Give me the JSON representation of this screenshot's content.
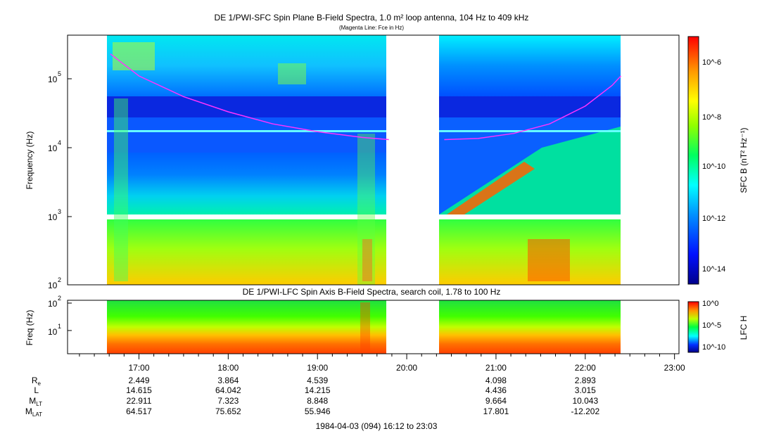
{
  "chart_data": [
    {
      "type": "heatmap",
      "title": "DE 1/PWI-SFC  Spin Plane B-Field Spectra, 1.0 m² loop antenna, 104 Hz to 409 kHz",
      "subtitle": "(Magenta Line: Fce in Hz)",
      "ylabel": "Frequency (Hz)",
      "yscale": "log",
      "ylim": [
        100,
        409000
      ],
      "yticks": [
        "10^2",
        "10^3",
        "10^4",
        "10^5"
      ],
      "colorbar": {
        "label": "SFC B (nT² Hz⁻¹)",
        "scale": "log",
        "ticks": [
          "10^-6",
          "10^-8",
          "10^-10",
          "10^-12",
          "10^-14"
        ]
      },
      "data_gaps_hours": [
        [
          16.2,
          16.667
        ],
        [
          19.8,
          20.4
        ],
        [
          22.4,
          23.2
        ]
      ],
      "magenta_line_fce": {
        "segment_1": {
          "t_hours": [
            16.68,
            17.0,
            17.5,
            18.0,
            18.5,
            19.0,
            19.5,
            19.8
          ],
          "hz": [
            230000,
            110000,
            55000,
            33000,
            22000,
            17000,
            14000,
            13000
          ]
        },
        "segment_2": {
          "t_hours": [
            20.42,
            20.8,
            21.2,
            21.6,
            22.0,
            22.3,
            22.4
          ],
          "hz": [
            13000,
            13500,
            16000,
            22000,
            40000,
            80000,
            110000
          ]
        }
      },
      "tick_labels_y": [
        "10",
        "2",
        "10",
        "3",
        "10",
        "4",
        "10",
        "5"
      ]
    },
    {
      "type": "heatmap",
      "title": "DE 1/PWI-LFC  Spin Axis B-Field Spectra, search coil, 1.78 to 100 Hz",
      "ylabel": "Freq (Hz)",
      "yscale": "log",
      "ylim": [
        1.78,
        100
      ],
      "yticks": [
        "10^1",
        "10^2"
      ],
      "colorbar": {
        "label": "LFC H",
        "scale": "log",
        "ticks": [
          "10^0",
          "10^-5",
          "10^-10"
        ]
      },
      "data_gaps_hours": [
        [
          16.2,
          16.667
        ],
        [
          19.8,
          20.4
        ],
        [
          22.4,
          23.2
        ]
      ]
    }
  ],
  "x_axis": {
    "range_hours": [
      16.2,
      23.05
    ],
    "tick_labels": [
      "17:00",
      "18:00",
      "19:00",
      "20:00",
      "21:00",
      "22:00",
      "23:00"
    ],
    "tick_hours": [
      17,
      18,
      19,
      20,
      21,
      22,
      23
    ]
  },
  "ephemeris": {
    "rows": [
      {
        "label": "R",
        "sub": "e",
        "values": [
          "2.449",
          "3.864",
          "4.539",
          "",
          "4.098",
          "2.893",
          ""
        ]
      },
      {
        "label": "L",
        "sub": "",
        "values": [
          "14.615",
          "64.042",
          "14.215",
          "",
          "4.436",
          "3.015",
          ""
        ]
      },
      {
        "label": "M",
        "sub": "LT",
        "values": [
          "22.911",
          "7.323",
          "8.848",
          "",
          "9.664",
          "10.043",
          ""
        ]
      },
      {
        "label": "M",
        "sub": "LAT",
        "values": [
          "64.517",
          "75.652",
          "55.946",
          "",
          "17.801",
          "-12.202",
          ""
        ]
      }
    ]
  },
  "footer": "1984-04-03 (094) 16:12 to 23:03",
  "colors": {
    "magenta_line": "#ff33ff",
    "cyan_line": "#66ffff"
  }
}
